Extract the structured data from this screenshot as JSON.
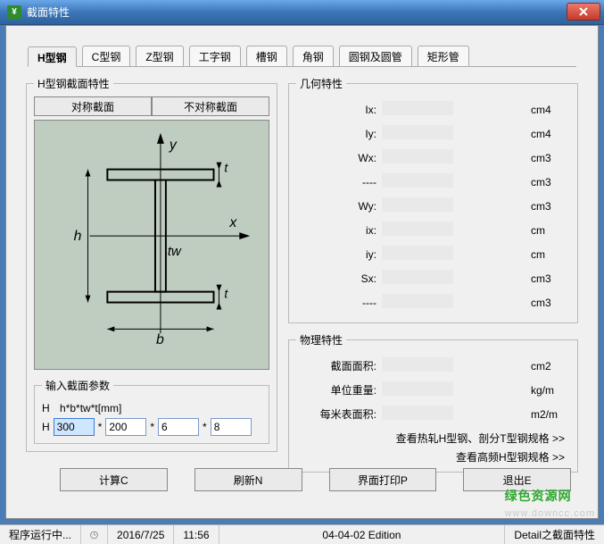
{
  "window": {
    "title": "截面特性"
  },
  "tabs": [
    "H型钢",
    "C型钢",
    "Z型钢",
    "工字钢",
    "槽钢",
    "角钢",
    "圆钢及圆管",
    "矩形管"
  ],
  "active_tab": 0,
  "section": {
    "legend": "H型钢截面特性",
    "sym_tab": "对称截面",
    "asym_tab": "不对称截面",
    "diagram_labels": {
      "y": "y",
      "x": "x",
      "h": "h",
      "b": "b",
      "tw": "tw",
      "t": "t",
      "t2": "t"
    }
  },
  "params": {
    "legend": "输入截面参数",
    "format_label": "H",
    "format": "h*b*tw*t[mm]",
    "prefix": "H",
    "values": [
      "300",
      "200",
      "6",
      "8"
    ]
  },
  "geom": {
    "legend": "几何特性",
    "rows": [
      {
        "label": "Ix:",
        "unit": "cm4"
      },
      {
        "label": "Iy:",
        "unit": "cm4"
      },
      {
        "label": "Wx:",
        "unit": "cm3"
      },
      {
        "label": "----",
        "unit": "cm3"
      },
      {
        "label": "Wy:",
        "unit": "cm3"
      },
      {
        "label": "ix:",
        "unit": "cm"
      },
      {
        "label": "iy:",
        "unit": "cm"
      },
      {
        "label": "Sx:",
        "unit": "cm3"
      },
      {
        "label": "----",
        "unit": "cm3"
      }
    ]
  },
  "phys": {
    "legend": "物理特性",
    "rows": [
      {
        "label": "截面面积:",
        "unit": "cm2"
      },
      {
        "label": "单位重量:",
        "unit": "kg/m"
      },
      {
        "label": "每米表面积:",
        "unit": "m2/m"
      }
    ],
    "link1": "查看热轧H型钢、剖分T型钢规格 >>",
    "link2": "查看高频H型钢规格 >>"
  },
  "buttons": {
    "calc": "计算C",
    "refresh": "刷新N",
    "print": "界面打印P",
    "exit": "退出E"
  },
  "status": {
    "running": "程序运行中...",
    "date": "2016/7/25",
    "time": "11:56",
    "edition": "04-04-02 Edition",
    "detail": "Detail之截面特性"
  },
  "watermark": {
    "green": "绿色资源网",
    "grey": "www.downcc.com"
  },
  "colors": {
    "diagram_bg": "#bfccc0",
    "titlebar_start": "#6aa8e8",
    "titlebar_end": "#2d629e"
  }
}
